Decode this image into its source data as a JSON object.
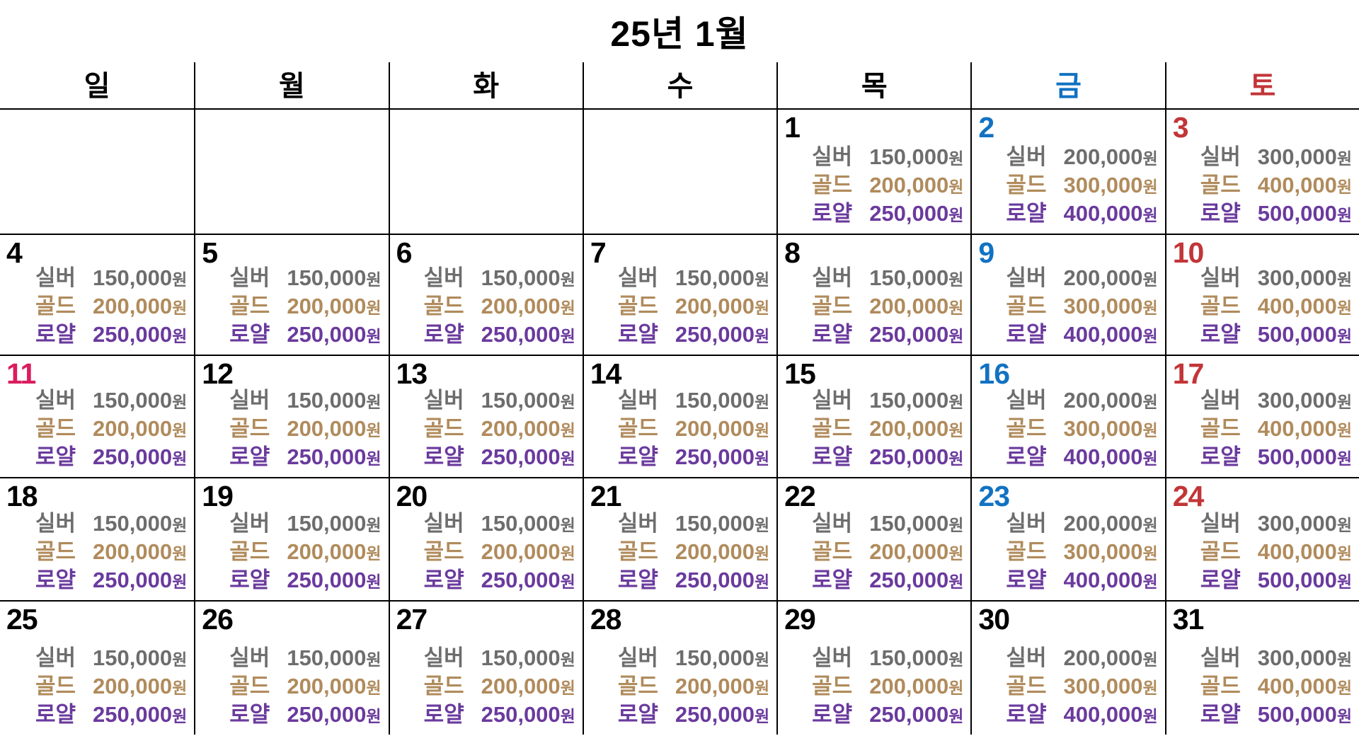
{
  "title": "25년 1월",
  "colors": {
    "black": "#000000",
    "blue": "#1272c2",
    "red": "#c23538",
    "pink": "#db1c5f",
    "silver": "#6d6d6d",
    "gold": "#b08b5c",
    "royal": "#6a3a9d"
  },
  "weekday_headers": [
    {
      "label": "일",
      "color": "black"
    },
    {
      "label": "월",
      "color": "black"
    },
    {
      "label": "화",
      "color": "black"
    },
    {
      "label": "수",
      "color": "black"
    },
    {
      "label": "목",
      "color": "black"
    },
    {
      "label": "금",
      "color": "blue"
    },
    {
      "label": "토",
      "color": "red"
    }
  ],
  "tiers": [
    {
      "label": "실버",
      "color": "silver"
    },
    {
      "label": "골드",
      "color": "gold"
    },
    {
      "label": "로얄",
      "color": "royal"
    }
  ],
  "currency_suffix": "원",
  "price_sets": {
    "standard": [
      "150,000",
      "200,000",
      "250,000"
    ],
    "friday": [
      "200,000",
      "300,000",
      "400,000"
    ],
    "saturday": [
      "300,000",
      "400,000",
      "500,000"
    ]
  },
  "weeks": [
    [
      {
        "empty": true
      },
      {
        "empty": true
      },
      {
        "empty": true
      },
      {
        "empty": true
      },
      {
        "day": "1",
        "num_color": "black",
        "price_set": "standard"
      },
      {
        "day": "2",
        "num_color": "blue",
        "price_set": "friday"
      },
      {
        "day": "3",
        "num_color": "red",
        "price_set": "saturday"
      }
    ],
    [
      {
        "day": "4",
        "num_color": "black",
        "price_set": "standard"
      },
      {
        "day": "5",
        "num_color": "black",
        "price_set": "standard"
      },
      {
        "day": "6",
        "num_color": "black",
        "price_set": "standard"
      },
      {
        "day": "7",
        "num_color": "black",
        "price_set": "standard"
      },
      {
        "day": "8",
        "num_color": "black",
        "price_set": "standard"
      },
      {
        "day": "9",
        "num_color": "blue",
        "price_set": "friday"
      },
      {
        "day": "10",
        "num_color": "red",
        "price_set": "saturday"
      }
    ],
    [
      {
        "day": "11",
        "num_color": "pink",
        "price_set": "standard"
      },
      {
        "day": "12",
        "num_color": "black",
        "price_set": "standard"
      },
      {
        "day": "13",
        "num_color": "black",
        "price_set": "standard"
      },
      {
        "day": "14",
        "num_color": "black",
        "price_set": "standard"
      },
      {
        "day": "15",
        "num_color": "black",
        "price_set": "standard"
      },
      {
        "day": "16",
        "num_color": "blue",
        "price_set": "friday"
      },
      {
        "day": "17",
        "num_color": "red",
        "price_set": "saturday"
      }
    ],
    [
      {
        "day": "18",
        "num_color": "black",
        "price_set": "standard"
      },
      {
        "day": "19",
        "num_color": "black",
        "price_set": "standard"
      },
      {
        "day": "20",
        "num_color": "black",
        "price_set": "standard"
      },
      {
        "day": "21",
        "num_color": "black",
        "price_set": "standard"
      },
      {
        "day": "22",
        "num_color": "black",
        "price_set": "standard"
      },
      {
        "day": "23",
        "num_color": "blue",
        "price_set": "friday"
      },
      {
        "day": "24",
        "num_color": "red",
        "price_set": "saturday"
      }
    ],
    [
      {
        "day": "25",
        "num_color": "black",
        "price_set": "standard"
      },
      {
        "day": "26",
        "num_color": "black",
        "price_set": "standard"
      },
      {
        "day": "27",
        "num_color": "black",
        "price_set": "standard"
      },
      {
        "day": "28",
        "num_color": "black",
        "price_set": "standard"
      },
      {
        "day": "29",
        "num_color": "black",
        "price_set": "standard"
      },
      {
        "day": "30",
        "num_color": "black",
        "price_set": "friday"
      },
      {
        "day": "31",
        "num_color": "black",
        "price_set": "saturday"
      }
    ]
  ]
}
